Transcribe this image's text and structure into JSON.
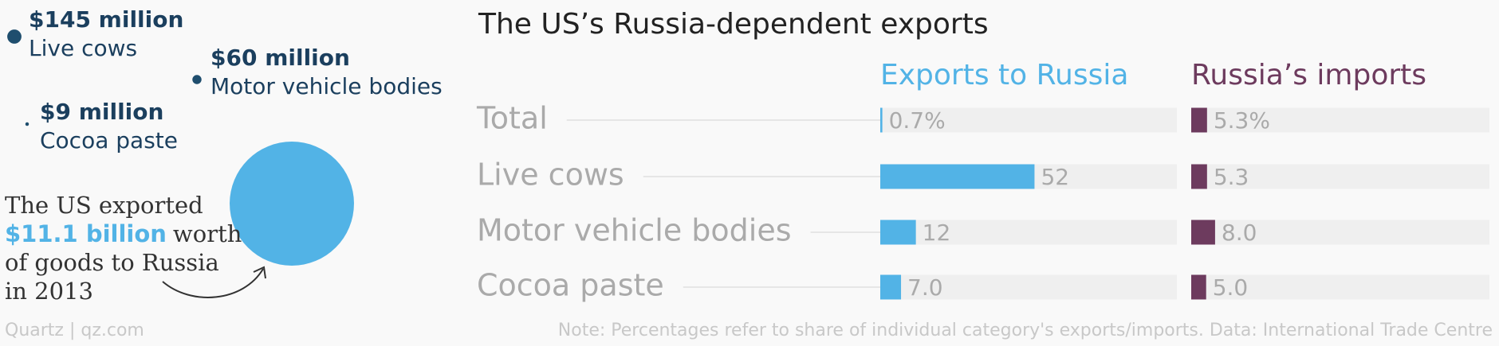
{
  "bubbles": {
    "items": [
      {
        "value": 145,
        "label": "$145 million",
        "name": "Live cows"
      },
      {
        "value": 60,
        "label": "$60 million",
        "name": "Motor vehicle bodies"
      },
      {
        "value": 9,
        "label": "$9 million",
        "name": "Cocoa paste"
      }
    ],
    "total": {
      "value": 11100,
      "label": "$11.1 billion",
      "color": "#52b3e6"
    },
    "dot_color": "#1f4e6e",
    "annotation": [
      "The US exported",
      "worth",
      "of goods to Russia",
      "in 2013"
    ]
  },
  "chart_data": {
    "type": "bar",
    "title": "The US’s Russia-dependent exports",
    "categories": [
      "Total",
      "Live cows",
      "Motor vehicle bodies",
      "Cocoa paste"
    ],
    "xlim": [
      0,
      100
    ],
    "series": [
      {
        "name": "Exports to Russia",
        "color": "#52b3e6",
        "values": [
          0.7,
          52,
          12,
          7.0
        ],
        "value_labels": [
          "0.7%",
          "52",
          "12",
          "7.0"
        ]
      },
      {
        "name": "Russia’s imports",
        "color": "#6d3b5e",
        "values": [
          5.3,
          5.3,
          8.0,
          5.0
        ],
        "value_labels": [
          "5.3%",
          "5.3",
          "8.0",
          "5.0"
        ]
      }
    ]
  },
  "footer": {
    "source": "Quartz | qz.com",
    "note": "Note: Percentages refer to share of individual category's exports/imports. Data: International Trade Centre"
  }
}
